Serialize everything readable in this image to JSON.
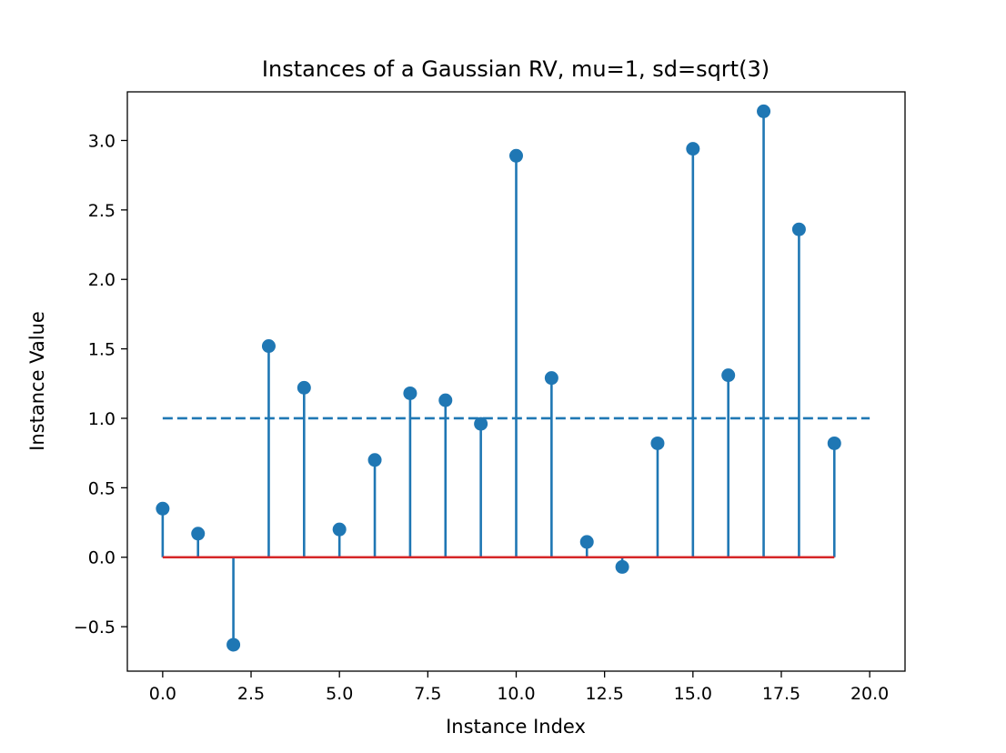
{
  "chart_data": {
    "type": "stem",
    "title": "Instances of a Gaussian RV, mu=1, sd=sqrt(3)",
    "xlabel": "Instance Index",
    "ylabel": "Instance Value",
    "xlim": [
      -1.0,
      21.0
    ],
    "ylim": [
      -0.82,
      3.35
    ],
    "x_ticks": [
      0.0,
      2.5,
      5.0,
      7.5,
      10.0,
      12.5,
      15.0,
      17.5,
      20.0
    ],
    "x_tick_labels": [
      "0.0",
      "2.5",
      "5.0",
      "7.5",
      "10.0",
      "12.5",
      "15.0",
      "17.5",
      "20.0"
    ],
    "y_ticks": [
      -0.5,
      0.0,
      0.5,
      1.0,
      1.5,
      2.0,
      2.5,
      3.0
    ],
    "y_tick_labels": [
      "−0.5",
      "0.0",
      "0.5",
      "1.0",
      "1.5",
      "2.0",
      "2.5",
      "3.0"
    ],
    "grid": false,
    "x": [
      0,
      1,
      2,
      3,
      4,
      5,
      6,
      7,
      8,
      9,
      10,
      11,
      12,
      13,
      14,
      15,
      16,
      17,
      18,
      19
    ],
    "values": [
      0.35,
      0.17,
      -0.63,
      1.52,
      1.22,
      0.2,
      0.7,
      1.18,
      1.13,
      0.96,
      2.89,
      1.29,
      0.11,
      -0.07,
      0.82,
      2.94,
      1.31,
      3.21,
      2.36,
      0.82
    ],
    "baseline": {
      "y": 0.0,
      "x_range": [
        0,
        19
      ]
    },
    "mean_line": {
      "y": 1.0,
      "x_range": [
        0,
        20
      ],
      "style": "dashed"
    },
    "colors": {
      "stem": "#1f77b4",
      "marker": "#1f77b4",
      "baseline": "#d62728",
      "mean_line": "#1f77b4"
    }
  }
}
